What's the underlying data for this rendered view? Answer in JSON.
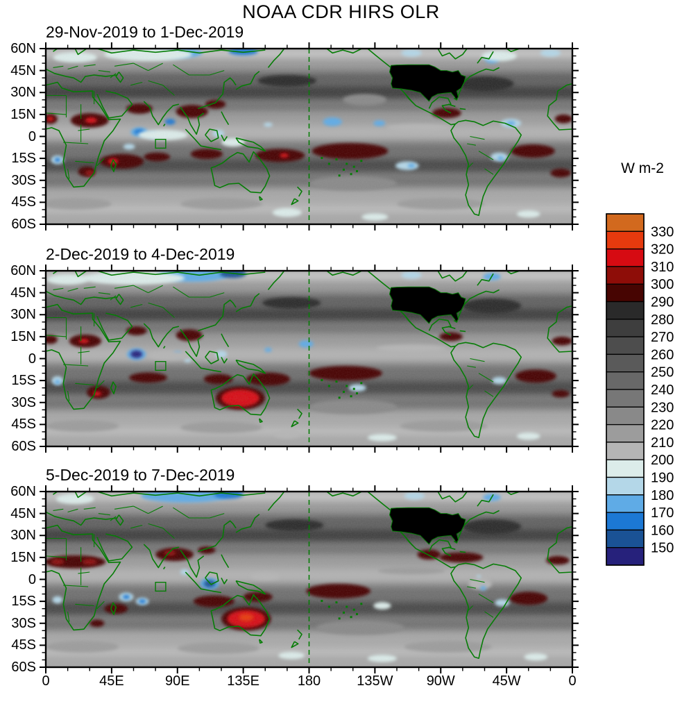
{
  "chart_data": {
    "type": "heatmap",
    "title": "NOAA CDR HIRS OLR",
    "units": "W m-2",
    "x_tick_labels": [
      "0",
      "45E",
      "90E",
      "135E",
      "180",
      "135W",
      "90W",
      "45W",
      "0"
    ],
    "y_tick_labels": [
      "60N",
      "45N",
      "30N",
      "15N",
      "0",
      "15S",
      "30S",
      "45S",
      "60S"
    ],
    "x_range_deg_east": [
      0,
      360
    ],
    "y_range_deg_lat": [
      -60,
      60
    ],
    "dateline_deg_east": 180,
    "colorbar": {
      "tick_labels": [
        "330",
        "320",
        "310",
        "300",
        "290",
        "280",
        "270",
        "260",
        "250",
        "240",
        "230",
        "220",
        "210",
        "200",
        "190",
        "180",
        "170",
        "160",
        "150"
      ],
      "colors_top_to_bottom": [
        "#d2691e",
        "#e63a0e",
        "#d60b12",
        "#8e0d08",
        "#470502",
        "#2a2a2a",
        "#3e3e3e",
        "#4d4d4d",
        "#5a5a5a",
        "#686868",
        "#777777",
        "#898989",
        "#9c9c9c",
        "#b5b5b5",
        "#dcecea",
        "#b4d7e8",
        "#5fabe6",
        "#1c78d4",
        "#1a5295",
        "#26217b"
      ],
      "bin_width_wm2": 10
    },
    "feature_format": "[lon_east_deg, lat_deg, width_deg, height_deg, olr_wm2]",
    "annotations": {
      "masked_region": "contiguous United States plotted as solid black (no data)",
      "coastline_color": "#067d06",
      "dateline_style": "dashed green vertical line at 180"
    },
    "panels": [
      {
        "label": "29-Nov-2019 to 1-Dec-2019",
        "features": [
          [
            30,
            11,
            26,
            10,
            295
          ],
          [
            3,
            12,
            10,
            7,
            295
          ],
          [
            354,
            12,
            12,
            6,
            295
          ],
          [
            64,
            19,
            18,
            7,
            295
          ],
          [
            100,
            17,
            22,
            9,
            295
          ],
          [
            116,
            22,
            14,
            6,
            295
          ],
          [
            52,
            -17,
            30,
            10,
            295
          ],
          [
            28,
            -24,
            12,
            7,
            295
          ],
          [
            76,
            -14,
            18,
            6,
            295
          ],
          [
            110,
            -12,
            22,
            7,
            295
          ],
          [
            160,
            -13,
            34,
            9,
            295
          ],
          [
            208,
            -10,
            52,
            11,
            295
          ],
          [
            274,
            16,
            20,
            7,
            295
          ],
          [
            333,
            -10,
            30,
            9,
            295
          ],
          [
            352,
            -25,
            14,
            6,
            295
          ],
          [
            31,
            11,
            8,
            4,
            315
          ],
          [
            3,
            12,
            5,
            3,
            315
          ],
          [
            46,
            -17,
            7,
            4,
            315
          ],
          [
            163,
            -13,
            6,
            3,
            315
          ],
          [
            30,
            -25,
            6,
            4,
            305
          ],
          [
            64,
            3,
            12,
            6,
            175
          ],
          [
            64,
            3,
            7,
            4,
            160
          ],
          [
            73,
            1,
            8,
            4,
            175
          ],
          [
            85,
            10,
            7,
            4,
            165
          ],
          [
            57,
            -7,
            8,
            4,
            180
          ],
          [
            8,
            -16,
            9,
            6,
            180
          ],
          [
            8,
            -16,
            4,
            3,
            165
          ],
          [
            118,
            2,
            8,
            5,
            180
          ],
          [
            152,
            8,
            6,
            3,
            180
          ],
          [
            196,
            10,
            13,
            6,
            170
          ],
          [
            228,
            9,
            8,
            4,
            175
          ],
          [
            247,
            -20,
            16,
            6,
            185
          ],
          [
            250,
            -20,
            5,
            3,
            175
          ],
          [
            310,
            -14,
            12,
            6,
            185
          ],
          [
            311,
            -15,
            4,
            3,
            170
          ],
          [
            318,
            9,
            14,
            6,
            185
          ],
          [
            318,
            9,
            6,
            3,
            170
          ],
          [
            90,
            57,
            34,
            7,
            175
          ],
          [
            135,
            58,
            20,
            5,
            165
          ],
          [
            250,
            57,
            14,
            5,
            180
          ],
          [
            305,
            53,
            10,
            6,
            175
          ],
          [
            345,
            57,
            14,
            5,
            185
          ],
          [
            70,
            56,
            60,
            9,
            195
          ],
          [
            20,
            54,
            30,
            7,
            195
          ],
          [
            310,
            55,
            24,
            7,
            195
          ],
          [
            165,
            -52,
            20,
            6,
            195
          ],
          [
            225,
            -55,
            18,
            5,
            195
          ],
          [
            330,
            -53,
            16,
            5,
            195
          ],
          [
            80,
            1,
            34,
            7,
            195
          ],
          [
            128,
            -4,
            16,
            6,
            195
          ],
          [
            255,
            6,
            44,
            5,
            205
          ],
          [
            300,
            36,
            40,
            10,
            285
          ],
          [
            165,
            38,
            40,
            8,
            285
          ],
          [
            218,
            25,
            30,
            8,
            225
          ],
          [
            210,
            -32,
            60,
            10,
            225
          ],
          [
            120,
            -46,
            56,
            8,
            215
          ],
          [
            20,
            -46,
            50,
            8,
            215
          ],
          [
            270,
            -46,
            60,
            8,
            215
          ]
        ]
      },
      {
        "label": "2-Dec-2019 to 4-Dec-2019",
        "features": [
          [
            27,
            12,
            22,
            9,
            295
          ],
          [
            26,
            12,
            7,
            3,
            315
          ],
          [
            3,
            13,
            10,
            6,
            295
          ],
          [
            353,
            12,
            14,
            6,
            295
          ],
          [
            36,
            -23,
            16,
            9,
            295
          ],
          [
            35,
            -24,
            6,
            3,
            315
          ],
          [
            62,
            19,
            14,
            6,
            295
          ],
          [
            98,
            16,
            18,
            8,
            295
          ],
          [
            70,
            -13,
            26,
            7,
            295
          ],
          [
            118,
            -14,
            20,
            7,
            295
          ],
          [
            152,
            -14,
            30,
            9,
            295
          ],
          [
            133,
            -27,
            34,
            16,
            297
          ],
          [
            133,
            -27,
            26,
            12,
            315
          ],
          [
            133,
            -27,
            11,
            5,
            318
          ],
          [
            205,
            -10,
            50,
            10,
            295
          ],
          [
            277,
            15,
            16,
            6,
            295
          ],
          [
            335,
            -12,
            28,
            9,
            295
          ],
          [
            352,
            -24,
            12,
            5,
            295
          ],
          [
            62,
            3,
            13,
            8,
            170
          ],
          [
            62,
            3,
            8,
            5,
            148
          ],
          [
            90,
            3,
            6,
            4,
            175
          ],
          [
            97,
            -1,
            5,
            3,
            180
          ],
          [
            120,
            3,
            8,
            5,
            180
          ],
          [
            152,
            6,
            5,
            3,
            175
          ],
          [
            178,
            10,
            10,
            5,
            175
          ],
          [
            213,
            -20,
            12,
            5,
            185
          ],
          [
            310,
            -15,
            10,
            5,
            185
          ],
          [
            8,
            -15,
            8,
            6,
            180
          ],
          [
            8,
            -16,
            4,
            3,
            170
          ],
          [
            100,
            57,
            50,
            9,
            175
          ],
          [
            128,
            58,
            18,
            6,
            158
          ],
          [
            250,
            57,
            14,
            5,
            180
          ],
          [
            305,
            56,
            12,
            5,
            178
          ],
          [
            60,
            55,
            70,
            9,
            190
          ],
          [
            15,
            54,
            28,
            7,
            195
          ],
          [
            230,
            -54,
            20,
            5,
            195
          ],
          [
            330,
            -53,
            16,
            5,
            195
          ],
          [
            165,
            -52,
            18,
            5,
            200
          ],
          [
            85,
            2,
            30,
            6,
            200
          ],
          [
            250,
            7,
            48,
            5,
            205
          ],
          [
            305,
            36,
            40,
            10,
            285
          ],
          [
            168,
            38,
            40,
            8,
            285
          ],
          [
            210,
            -33,
            60,
            10,
            225
          ],
          [
            120,
            -47,
            56,
            8,
            215
          ],
          [
            25,
            -46,
            50,
            8,
            215
          ],
          [
            272,
            -46,
            60,
            8,
            215
          ]
        ]
      },
      {
        "label": "5-Dec-2019 to 7-Dec-2019",
        "features": [
          [
            20,
            12,
            42,
            9,
            295
          ],
          [
            8,
            12,
            9,
            4,
            308
          ],
          [
            30,
            12,
            10,
            4,
            300
          ],
          [
            350,
            13,
            16,
            6,
            295
          ],
          [
            88,
            17,
            26,
            9,
            295
          ],
          [
            85,
            18,
            8,
            4,
            305
          ],
          [
            110,
            20,
            12,
            5,
            295
          ],
          [
            115,
            -15,
            28,
            8,
            295
          ],
          [
            145,
            -12,
            20,
            7,
            295
          ],
          [
            137,
            -27,
            34,
            16,
            297
          ],
          [
            137,
            -27,
            26,
            12,
            315
          ],
          [
            137,
            -26,
            10,
            5,
            322
          ],
          [
            48,
            -20,
            16,
            7,
            295
          ],
          [
            35,
            -30,
            10,
            5,
            295
          ],
          [
            200,
            -8,
            44,
            10,
            295
          ],
          [
            262,
            17,
            16,
            7,
            295
          ],
          [
            284,
            15,
            30,
            7,
            295
          ],
          [
            330,
            -13,
            26,
            9,
            295
          ],
          [
            112,
            -3,
            13,
            8,
            175
          ],
          [
            112,
            -3,
            8,
            5,
            152
          ],
          [
            55,
            -12,
            10,
            6,
            185
          ],
          [
            55,
            -12,
            5,
            3,
            162
          ],
          [
            66,
            -15,
            9,
            5,
            185
          ],
          [
            66,
            -15,
            5,
            3,
            165
          ],
          [
            95,
            5,
            6,
            4,
            180
          ],
          [
            230,
            -18,
            12,
            5,
            190
          ],
          [
            312,
            -16,
            10,
            5,
            185
          ],
          [
            8,
            -14,
            7,
            5,
            185
          ],
          [
            297,
            -3,
            16,
            8,
            200
          ],
          [
            299,
            -6,
            4,
            3,
            175
          ],
          [
            296,
            2,
            3,
            2,
            185
          ],
          [
            95,
            57,
            60,
            9,
            172
          ],
          [
            125,
            58,
            20,
            6,
            162
          ],
          [
            252,
            57,
            14,
            5,
            180
          ],
          [
            305,
            56,
            12,
            5,
            178
          ],
          [
            20,
            55,
            26,
            7,
            190
          ],
          [
            230,
            -54,
            20,
            5,
            195
          ],
          [
            335,
            -53,
            16,
            5,
            195
          ],
          [
            168,
            -52,
            18,
            5,
            198
          ],
          [
            250,
            6,
            46,
            5,
            210
          ],
          [
            150,
            2,
            20,
            5,
            205
          ],
          [
            305,
            36,
            40,
            10,
            285
          ],
          [
            170,
            37,
            40,
            8,
            285
          ],
          [
            215,
            -33,
            60,
            10,
            225
          ],
          [
            118,
            -47,
            56,
            8,
            215
          ],
          [
            25,
            -46,
            50,
            8,
            215
          ],
          [
            275,
            -46,
            60,
            8,
            215
          ]
        ]
      }
    ]
  }
}
